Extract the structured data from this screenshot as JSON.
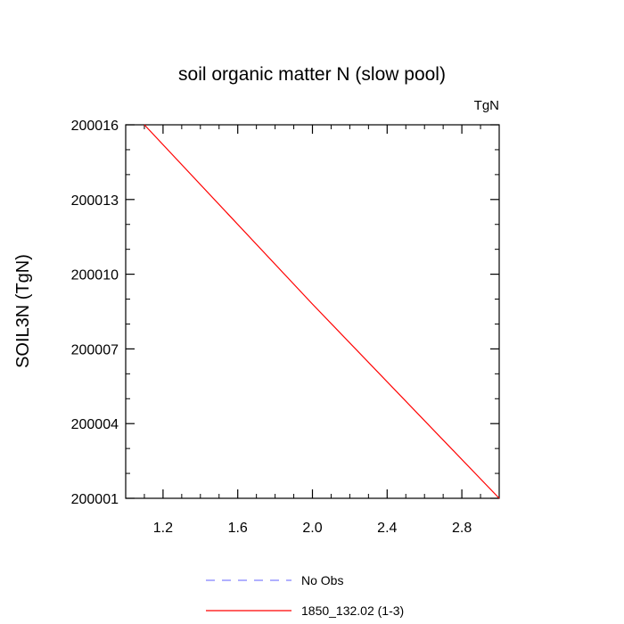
{
  "chart_data": {
    "type": "line",
    "title": "soil organic matter N (slow pool)",
    "units_label": "TgN",
    "xlabel": "",
    "ylabel": "SOIL3N  (TgN)",
    "xlim": [
      1.0,
      3.0
    ],
    "ylim": [
      200001,
      200016
    ],
    "x_ticks": [
      1.2,
      1.6,
      2.0,
      2.4,
      2.8
    ],
    "x_tick_labels": [
      "1.2",
      "1.6",
      "2.0",
      "2.4",
      "2.8"
    ],
    "y_ticks": [
      200001,
      200004,
      200007,
      200010,
      200013,
      200016
    ],
    "y_tick_labels": [
      "200001",
      "200004",
      "200007",
      "200010",
      "200013",
      "200016"
    ],
    "grid": false,
    "legend_position": "bottom",
    "series": [
      {
        "name": "1850_132.02 (1-3)",
        "color": "#ff0000",
        "dash": "solid",
        "x": [
          1.1,
          2.0,
          3.0
        ],
        "y": [
          200016.0,
          200008.8,
          200001.0
        ]
      }
    ],
    "legend": [
      {
        "label": "No Obs",
        "color": "#8080ff",
        "dash": "dashed"
      },
      {
        "label": "1850_132.02 (1-3)",
        "color": "#ff0000",
        "dash": "solid"
      }
    ]
  }
}
